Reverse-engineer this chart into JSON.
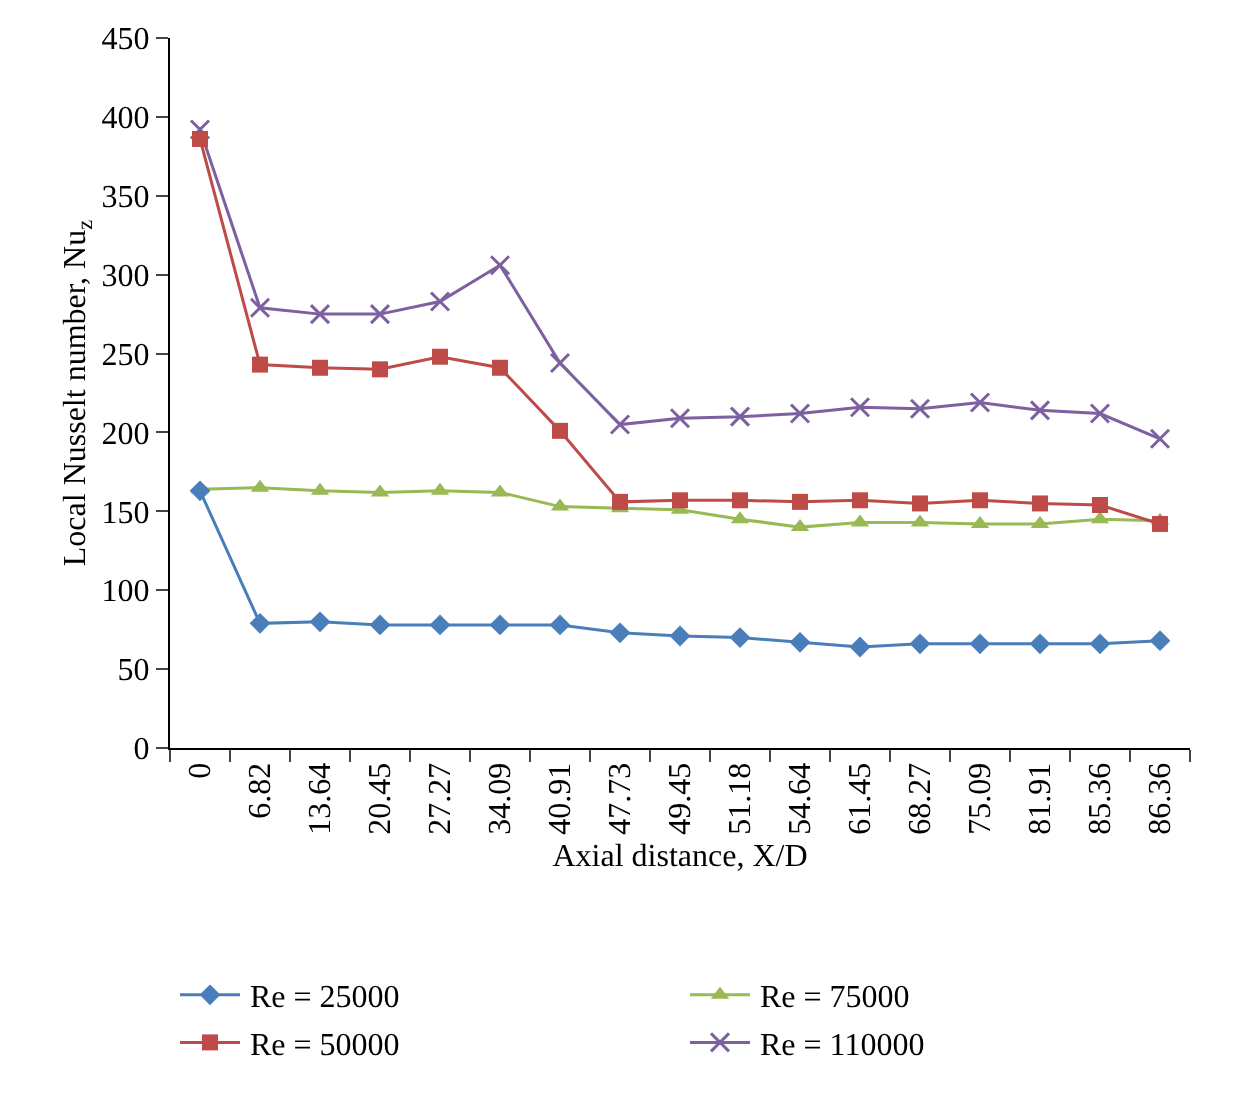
{
  "chart_data": {
    "type": "line",
    "xlabel": "Axial distance, X/D",
    "ylabel": "Local Nusselt number, Nu$_{z}$",
    "categories": [
      "0",
      "6.82",
      "13.64",
      "20.45",
      "27.27",
      "34.09",
      "40.91",
      "47.73",
      "49.45",
      "51.18",
      "54.64",
      "61.45",
      "68.27",
      "75.09",
      "81.91",
      "85.36",
      "86.36"
    ],
    "series": [
      {
        "name": "Re = 25000",
        "color": "#4a7ebb",
        "marker": "diamond",
        "values": [
          163,
          79,
          80,
          78,
          78,
          78,
          78,
          73,
          71,
          70,
          67,
          64,
          66,
          66,
          66,
          66,
          68
        ]
      },
      {
        "name": "Re = 50000",
        "color": "#be4b48",
        "marker": "square",
        "values": [
          386,
          243,
          241,
          240,
          248,
          241,
          201,
          156,
          157,
          157,
          156,
          157,
          155,
          157,
          155,
          154,
          142
        ]
      },
      {
        "name": "Re = 75000",
        "color": "#98b954",
        "marker": "triangle",
        "values": [
          164,
          165,
          163,
          162,
          163,
          162,
          153,
          152,
          151,
          145,
          140,
          143,
          143,
          142,
          142,
          145,
          144
        ]
      },
      {
        "name": "Re = 110000",
        "color": "#7d60a0",
        "marker": "cross",
        "values": [
          392,
          279,
          275,
          275,
          283,
          306,
          244,
          205,
          209,
          210,
          212,
          216,
          215,
          219,
          214,
          212,
          196
        ]
      }
    ],
    "ylim": [
      0,
      450
    ],
    "yticks": [
      0,
      50,
      100,
      150,
      200,
      250,
      300,
      350,
      400,
      450
    ],
    "grid": false,
    "legend": "bottom",
    "line_style": "solid"
  }
}
